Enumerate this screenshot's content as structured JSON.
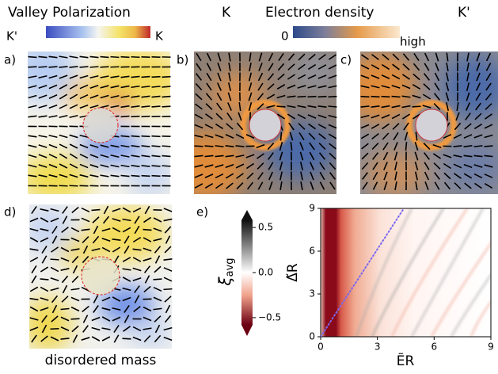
{
  "header": {
    "valley_title": "Valley Polarization",
    "valley_left": "K'",
    "valley_right": "K",
    "k_left": "K",
    "density_title": "Electron density",
    "density_low": "0",
    "density_high": "high",
    "k_right": "K'"
  },
  "panels": {
    "a": "a)",
    "b": "b)",
    "c": "c)",
    "d": "d)",
    "e": "e)",
    "d_caption": "disordered mass"
  },
  "chart_data": {
    "type": "line",
    "x": [
      0,
      4.4
    ],
    "values": [
      0,
      9
    ],
    "color": "#7b68ee",
    "xlabel": "ẼR",
    "ylabel": "Δ̃R",
    "xlim": [
      0,
      9
    ],
    "ylim": [
      0,
      9
    ],
    "xticks": [
      0,
      3,
      6,
      9
    ],
    "yticks": [
      0,
      3,
      6,
      9
    ],
    "colorbar": {
      "symbol": "ξ",
      "subscript": "avg",
      "lim": [
        -0.58,
        0.58
      ],
      "ticks": [
        0.5,
        {
          "value": 0,
          "label": "0.0"
        },
        {
          "value": -0.5,
          "label": "−0.5"
        }
      ]
    }
  }
}
